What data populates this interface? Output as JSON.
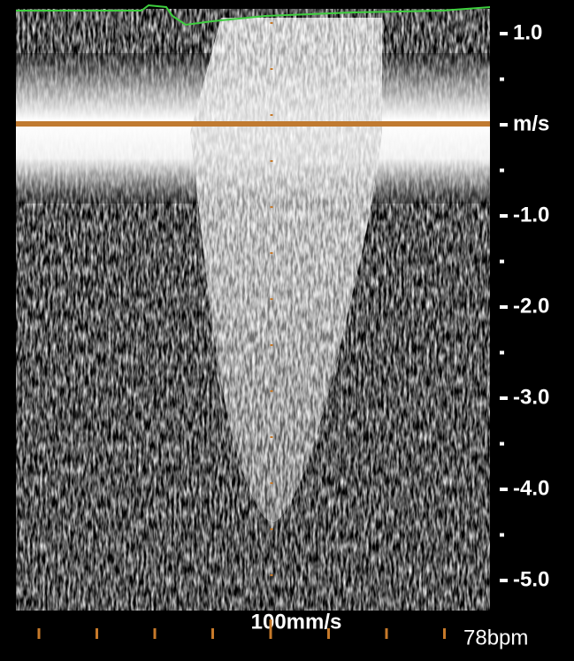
{
  "scale": {
    "labels": [
      "1.0",
      "m/s",
      "-1.0",
      "-2.0",
      "-3.0",
      "-4.0",
      "-5.0"
    ]
  },
  "sweep_speed": "100mm/s",
  "heart_rate": "78bpm"
}
